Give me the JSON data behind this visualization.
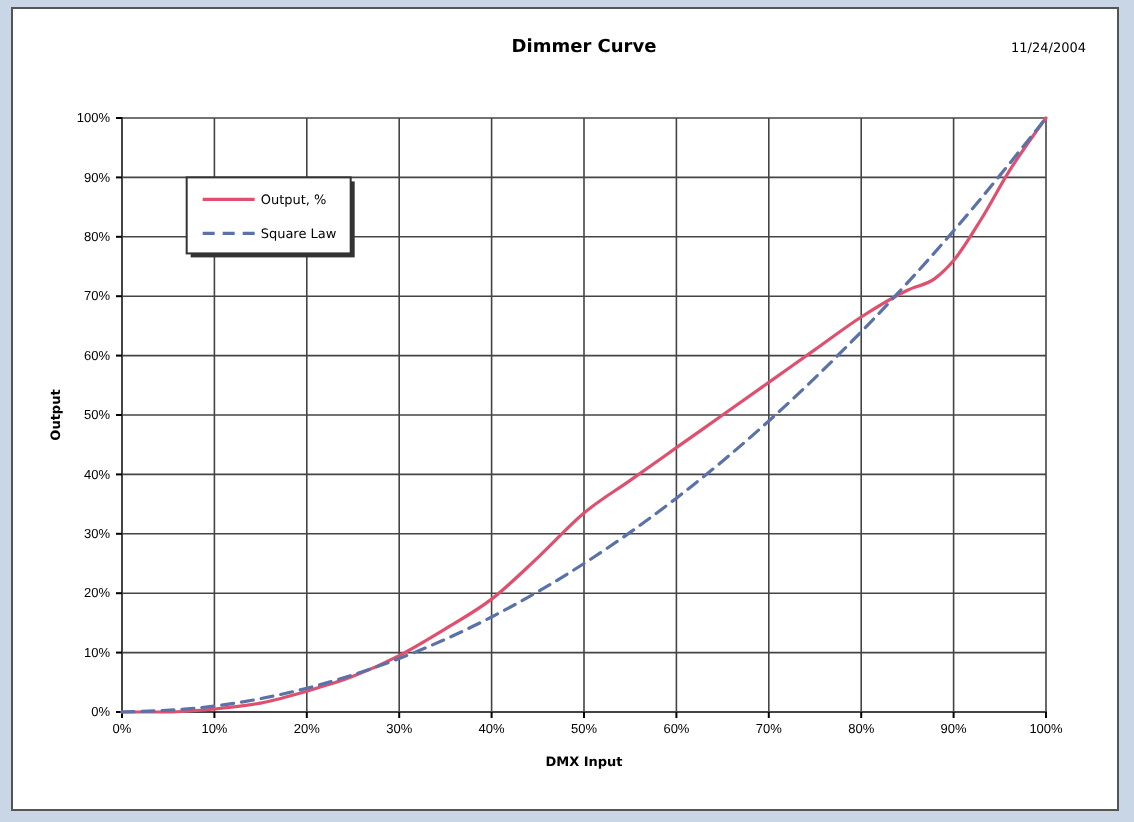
{
  "chart_data": {
    "type": "line",
    "title": "Dimmer Curve",
    "xlabel": "DMX Input",
    "ylabel": "Output",
    "annotations": [
      "11/24/2004"
    ],
    "xlim": [
      0,
      100
    ],
    "ylim": [
      0,
      100
    ],
    "xticks": [
      {
        "value": 0,
        "label": "0%"
      },
      {
        "value": 10,
        "label": "10%"
      },
      {
        "value": 20,
        "label": "20%"
      },
      {
        "value": 30,
        "label": "30%"
      },
      {
        "value": 40,
        "label": "40%"
      },
      {
        "value": 50,
        "label": "50%"
      },
      {
        "value": 60,
        "label": "60%"
      },
      {
        "value": 70,
        "label": "70%"
      },
      {
        "value": 80,
        "label": "80%"
      },
      {
        "value": 90,
        "label": "90%"
      },
      {
        "value": 100,
        "label": "100%"
      }
    ],
    "yticks": [
      {
        "value": 0,
        "label": "0%"
      },
      {
        "value": 10,
        "label": "10%"
      },
      {
        "value": 20,
        "label": "20%"
      },
      {
        "value": 30,
        "label": "30%"
      },
      {
        "value": 40,
        "label": "40%"
      },
      {
        "value": 50,
        "label": "50%"
      },
      {
        "value": 60,
        "label": "60%"
      },
      {
        "value": 70,
        "label": "70%"
      },
      {
        "value": 80,
        "label": "80%"
      },
      {
        "value": 90,
        "label": "90%"
      },
      {
        "value": 100,
        "label": "100%"
      }
    ],
    "grid": true,
    "legend": "top left",
    "marker": "none",
    "series": [
      {
        "name": "Output, %",
        "color": "#e0506e",
        "line_style": "solid",
        "x": [
          0,
          5,
          10,
          15,
          20,
          25,
          30,
          35,
          40,
          45,
          50,
          55,
          60,
          65,
          70,
          75,
          80,
          85,
          88,
          90,
          93,
          96,
          100
        ],
        "values": [
          0,
          0,
          0.5,
          1.5,
          3.5,
          6,
          9.5,
          14,
          19,
          26,
          33.5,
          39,
          44.5,
          50,
          55.5,
          61,
          66.5,
          71,
          73,
          76,
          83,
          91,
          100
        ]
      },
      {
        "name": "Square Law",
        "color": "#5a72a8",
        "line_style": "dashed",
        "x": [
          0,
          10,
          20,
          30,
          40,
          50,
          60,
          70,
          80,
          90,
          100
        ],
        "values": [
          0,
          1,
          4,
          9,
          16,
          25,
          36,
          49,
          64,
          81,
          100
        ]
      }
    ]
  }
}
